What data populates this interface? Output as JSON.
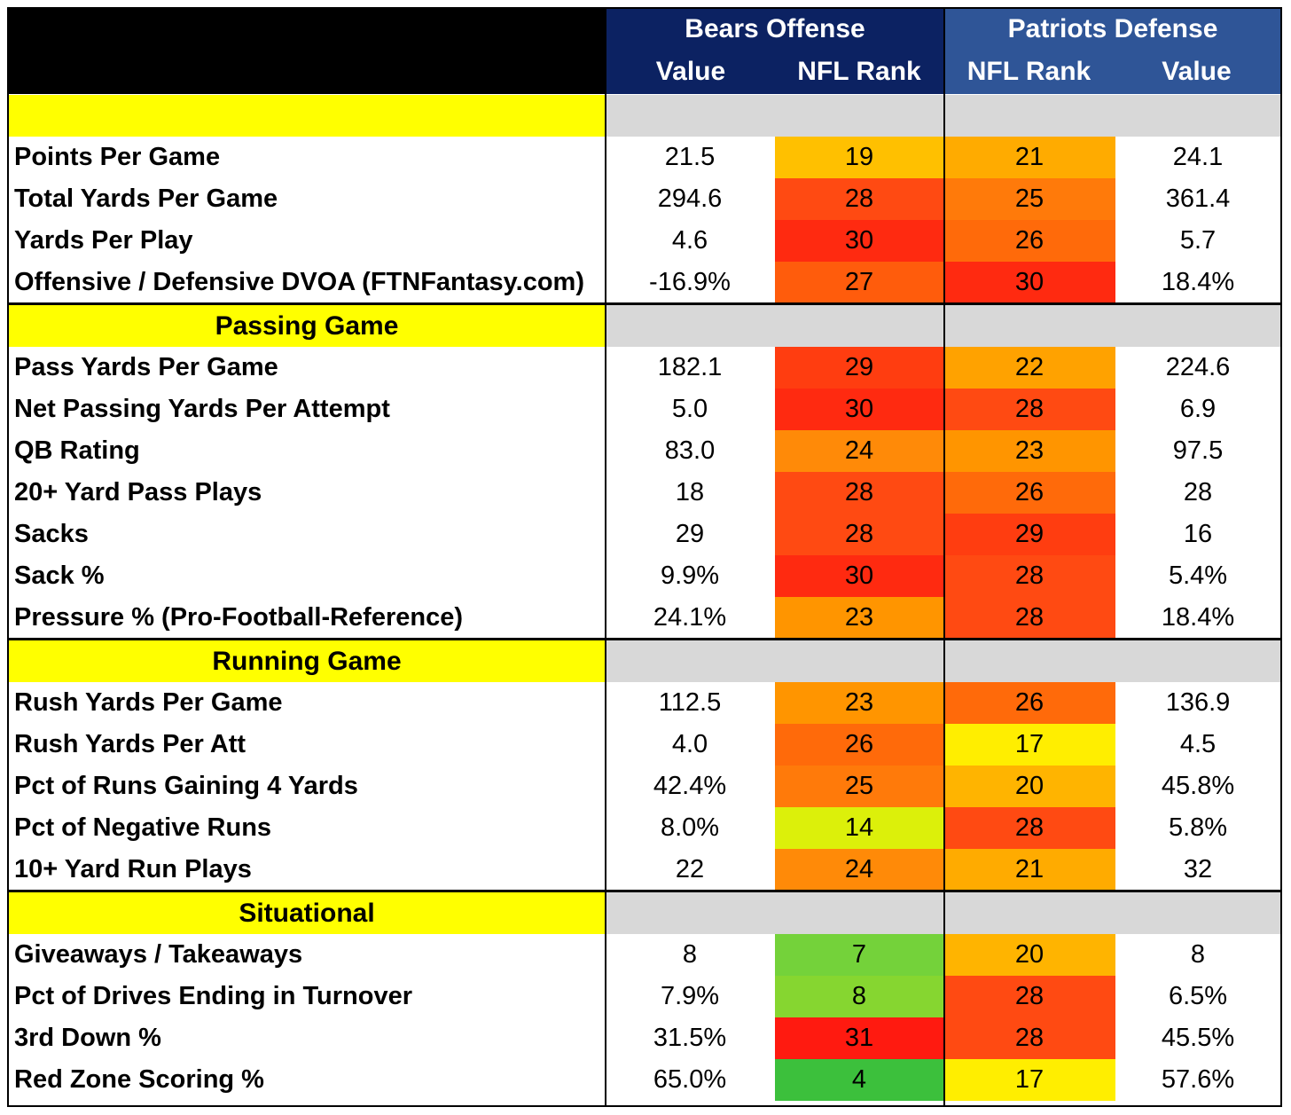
{
  "header": {
    "bears_title": "Bears Offense",
    "patriots_title": "Patriots Defense",
    "bears_col1": "Value",
    "bears_col2": "NFL Rank",
    "patriots_col1": "NFL Rank",
    "patriots_col2": "Value"
  },
  "sections": [
    {
      "title": "",
      "rows": [
        {
          "label": "Points Per Game",
          "bears_value": "21.5",
          "bears_rank": "19",
          "pats_rank": "21",
          "pats_value": "24.1",
          "bears_color": "#ffc000",
          "pats_color": "#ffab00"
        },
        {
          "label": "Total Yards Per Game",
          "bears_value": "294.6",
          "bears_rank": "28",
          "pats_rank": "25",
          "pats_value": "361.4",
          "bears_color": "#ff4a12",
          "pats_color": "#ff7a0a"
        },
        {
          "label": "Yards Per Play",
          "bears_value": "4.6",
          "bears_rank": "30",
          "pats_rank": "26",
          "pats_value": "5.7",
          "bears_color": "#ff2a10",
          "pats_color": "#ff6a0a"
        },
        {
          "label": "Offensive / Defensive DVOA (FTNFantasy.com)",
          "bears_value": "-16.9%",
          "bears_rank": "27",
          "pats_rank": "30",
          "pats_value": "18.4%",
          "bears_color": "#ff5c0c",
          "pats_color": "#ff2a10"
        }
      ]
    },
    {
      "title": "Passing Game",
      "rows": [
        {
          "label": "Pass Yards Per Game",
          "bears_value": "182.1",
          "bears_rank": "29",
          "pats_rank": "22",
          "pats_value": "224.6",
          "bears_color": "#ff3d10",
          "pats_color": "#ffa200"
        },
        {
          "label": "Net Passing Yards Per Attempt",
          "bears_value": "5.0",
          "bears_rank": "30",
          "pats_rank": "28",
          "pats_value": "6.9",
          "bears_color": "#ff2a10",
          "pats_color": "#ff4a12"
        },
        {
          "label": "QB Rating",
          "bears_value": "83.0",
          "bears_rank": "24",
          "pats_rank": "23",
          "pats_value": "97.5",
          "bears_color": "#ff8a08",
          "pats_color": "#ff9500"
        },
        {
          "label": "20+ Yard Pass Plays",
          "bears_value": "18",
          "bears_rank": "28",
          "pats_rank": "26",
          "pats_value": "28",
          "bears_color": "#ff4a12",
          "pats_color": "#ff6a0a"
        },
        {
          "label": "Sacks",
          "bears_value": "29",
          "bears_rank": "28",
          "pats_rank": "29",
          "pats_value": "16",
          "bears_color": "#ff4a12",
          "pats_color": "#ff3d10"
        },
        {
          "label": "Sack %",
          "bears_value": "9.9%",
          "bears_rank": "30",
          "pats_rank": "28",
          "pats_value": "5.4%",
          "bears_color": "#ff2a10",
          "pats_color": "#ff4a12"
        },
        {
          "label": "Pressure % (Pro-Football-Reference)",
          "bears_value": "24.1%",
          "bears_rank": "23",
          "pats_rank": "28",
          "pats_value": "18.4%",
          "bears_color": "#ff9500",
          "pats_color": "#ff4a12"
        }
      ]
    },
    {
      "title": "Running Game",
      "rows": [
        {
          "label": "Rush Yards Per Game",
          "bears_value": "112.5",
          "bears_rank": "23",
          "pats_rank": "26",
          "pats_value": "136.9",
          "bears_color": "#ff9500",
          "pats_color": "#ff6a0a"
        },
        {
          "label": "Rush Yards Per Att",
          "bears_value": "4.0",
          "bears_rank": "26",
          "pats_rank": "17",
          "pats_value": "4.5",
          "bears_color": "#ff6a0a",
          "pats_color": "#ffee00"
        },
        {
          "label": "Pct of Runs Gaining 4 Yards",
          "bears_value": "42.4%",
          "bears_rank": "25",
          "pats_rank": "20",
          "pats_value": "45.8%",
          "bears_color": "#ff7a0a",
          "pats_color": "#ffb400"
        },
        {
          "label": "Pct of Negative Runs",
          "bears_value": "8.0%",
          "bears_rank": "14",
          "pats_rank": "28",
          "pats_value": "5.8%",
          "bears_color": "#dcf00a",
          "pats_color": "#ff4a12"
        },
        {
          "label": "10+ Yard Run Plays",
          "bears_value": "22",
          "bears_rank": "24",
          "pats_rank": "21",
          "pats_value": "32",
          "bears_color": "#ff8a08",
          "pats_color": "#ffab00"
        }
      ]
    },
    {
      "title": "Situational",
      "rows": [
        {
          "label": "Giveaways / Takeaways",
          "bears_value": "8",
          "bears_rank": "7",
          "pats_rank": "20",
          "pats_value": "8",
          "bears_color": "#74d23a",
          "pats_color": "#ffb400"
        },
        {
          "label": "Pct of Drives Ending in Turnover",
          "bears_value": "7.9%",
          "bears_rank": "8",
          "pats_rank": "28",
          "pats_value": "6.5%",
          "bears_color": "#86d630",
          "pats_color": "#ff4a12"
        },
        {
          "label": "3rd Down %",
          "bears_value": "31.5%",
          "bears_rank": "31",
          "pats_rank": "28",
          "pats_value": "45.5%",
          "bears_color": "#ff1a10",
          "pats_color": "#ff4a12"
        },
        {
          "label": "Red Zone Scoring %",
          "bears_value": "65.0%",
          "bears_rank": "4",
          "pats_rank": "17",
          "pats_value": "57.6%",
          "bears_color": "#3cc03c",
          "pats_color": "#ffee00"
        }
      ]
    }
  ]
}
